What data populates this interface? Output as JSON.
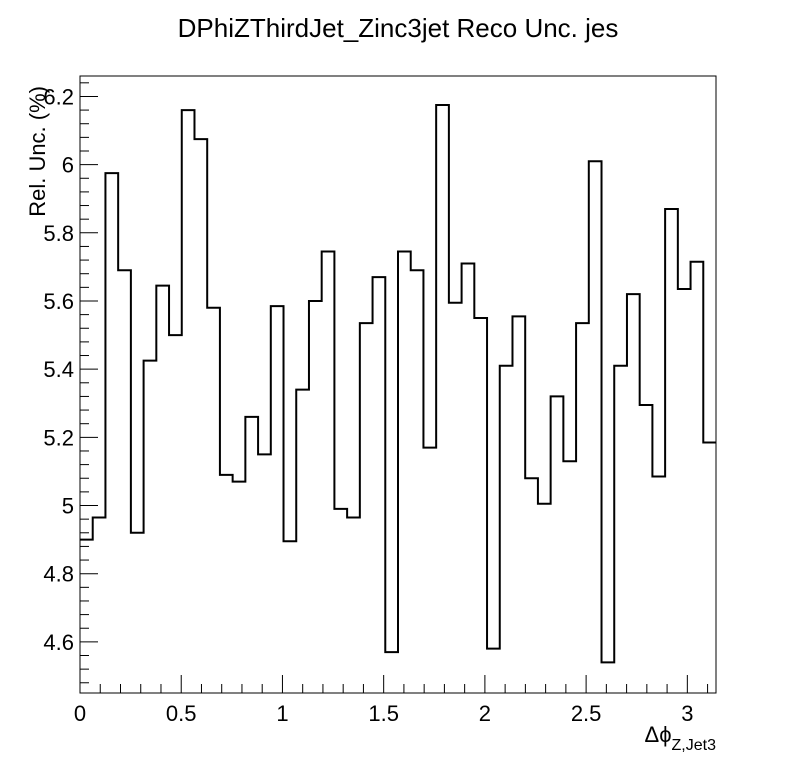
{
  "chart_data": {
    "type": "line",
    "title": "DPhiZThirdJet_Zinc3jet Reco Unc. jes",
    "xlabel_main": "Δϕ",
    "xlabel_sub": "Z,Jet3",
    "ylabel": "Rel. Unc. (%)",
    "xlim": [
      0,
      3.1416
    ],
    "ylim": [
      4.45,
      6.26
    ],
    "x_ticks": [
      {
        "value": 0,
        "label": "0"
      },
      {
        "value": 0.5,
        "label": "0.5"
      },
      {
        "value": 1,
        "label": "1"
      },
      {
        "value": 1.5,
        "label": "1.5"
      },
      {
        "value": 2,
        "label": "2"
      },
      {
        "value": 2.5,
        "label": "2.5"
      },
      {
        "value": 3,
        "label": "3"
      }
    ],
    "y_ticks": [
      {
        "value": 4.6,
        "label": "4.6"
      },
      {
        "value": 4.8,
        "label": "4.8"
      },
      {
        "value": 5.0,
        "label": "5"
      },
      {
        "value": 5.2,
        "label": "5.2"
      },
      {
        "value": 5.4,
        "label": "5.4"
      },
      {
        "value": 5.6,
        "label": "5.6"
      },
      {
        "value": 5.8,
        "label": "5.8"
      },
      {
        "value": 6.0,
        "label": "6"
      },
      {
        "value": 6.2,
        "label": "6.2"
      }
    ],
    "bins": 50,
    "values": [
      4.9,
      4.965,
      5.975,
      5.69,
      4.92,
      5.425,
      5.645,
      5.5,
      6.16,
      6.075,
      5.58,
      5.09,
      5.07,
      5.26,
      5.15,
      5.585,
      4.895,
      5.34,
      5.6,
      5.745,
      4.99,
      4.965,
      5.535,
      5.67,
      4.57,
      5.745,
      5.69,
      5.17,
      6.175,
      5.595,
      5.71,
      5.55,
      4.58,
      5.41,
      5.555,
      5.08,
      5.005,
      5.32,
      5.13,
      5.535,
      6.01,
      4.54,
      5.41,
      5.62,
      5.295,
      5.085,
      5.87,
      5.635,
      5.715,
      5.185
    ],
    "grid": false,
    "line_color": "#000000"
  }
}
